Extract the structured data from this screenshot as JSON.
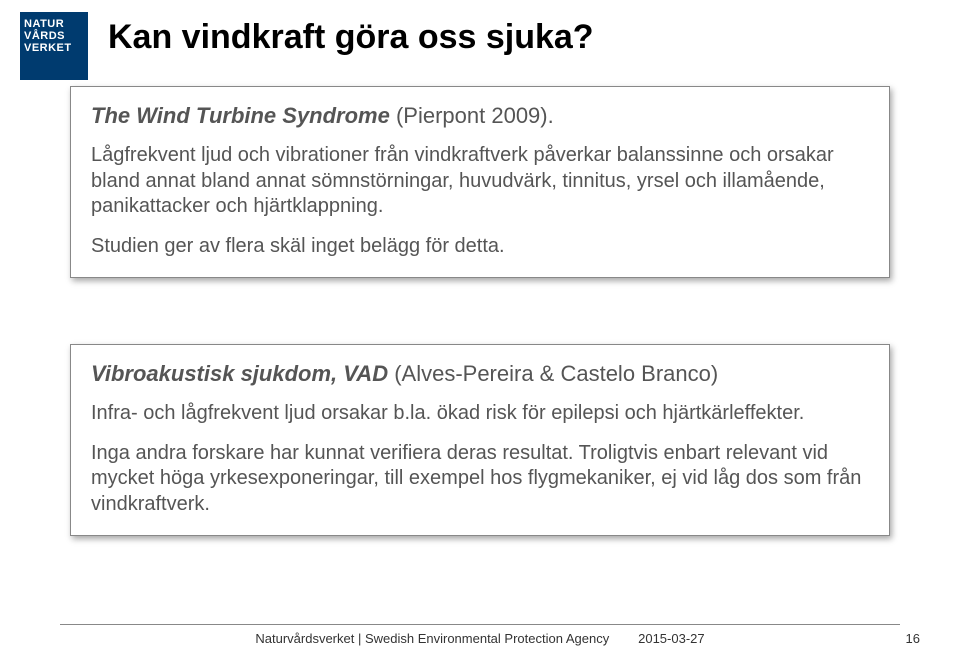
{
  "logo": {
    "line1": "NATUR",
    "line2": "VÅRDS",
    "line3": "VERKET"
  },
  "title": "Kan vindkraft göra oss sjuka?",
  "box1": {
    "heading_lead": "The Wind Turbine Syndrome",
    "heading_rest": " (Pierpont 2009).",
    "p1": "Lågfrekvent ljud och vibrationer från vindkraftverk påverkar balanssinne och orsakar bland annat bland annat sömnstörningar, huvudvärk, tinnitus, yrsel och illamående, panikattacker och hjärtklappning.",
    "p2": "Studien ger av flera skäl inget belägg för detta."
  },
  "box2": {
    "heading_lead": "Vibroakustisk sjukdom, VAD",
    "heading_rest": " (Alves-Pereira & Castelo Branco)",
    "p1": "Infra- och lågfrekvent ljud orsakar b.la. ökad risk för epilepsi och hjärtkärleffekter.",
    "p2": "Inga andra forskare har kunnat verifiera deras resultat. Troligtvis enbart relevant vid mycket höga yrkesexponeringar, till exempel hos flygmekaniker, ej vid låg dos som från vindkraftverk."
  },
  "footer": {
    "org": "Naturvårdsverket | Swedish Environmental Protection Agency",
    "date": "2015-03-27",
    "page": "16"
  },
  "colors": {
    "logo_bg": "#003b6f",
    "text": "#555555",
    "title": "#000000",
    "rule": "#888888"
  }
}
